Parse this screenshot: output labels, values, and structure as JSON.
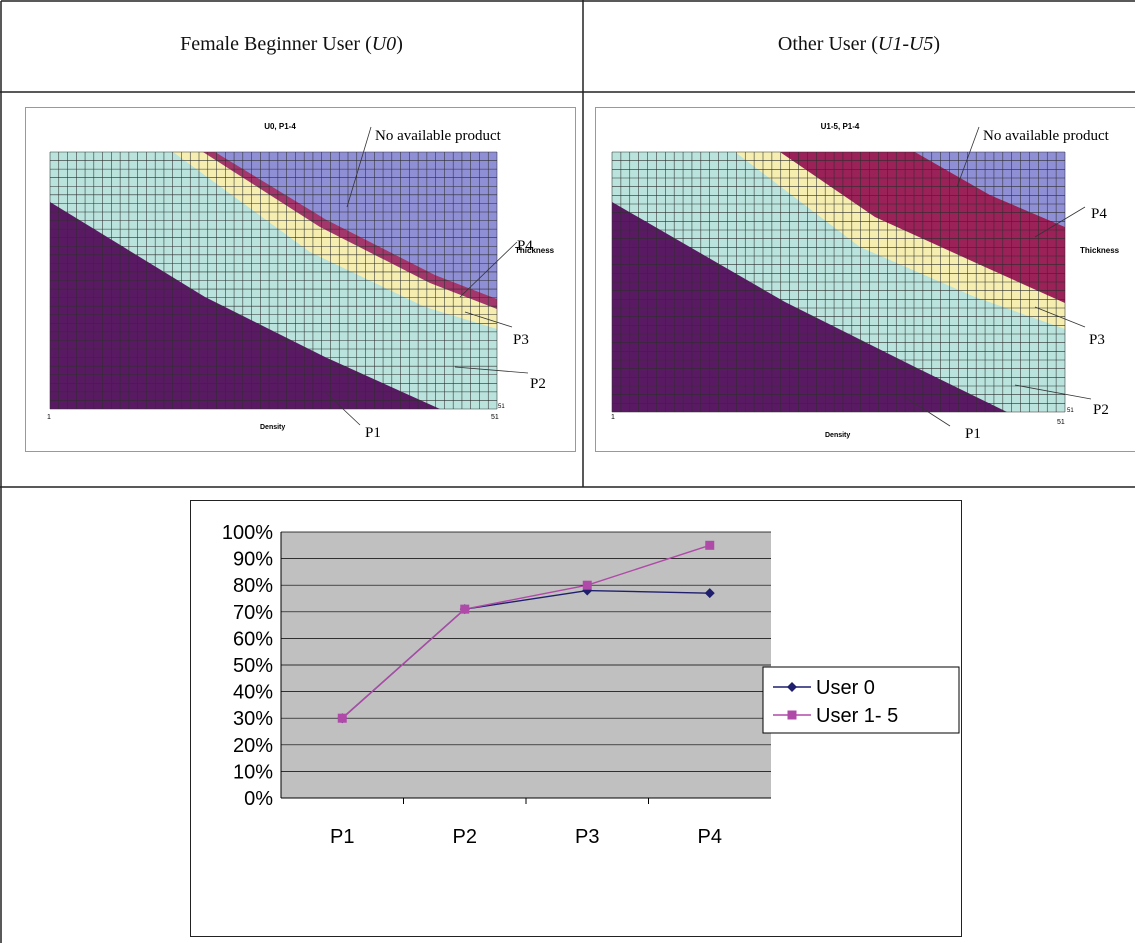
{
  "headers": {
    "left": {
      "prefix": "Female Beginner User (",
      "italic": "U0",
      "suffix": ")"
    },
    "right": {
      "prefix": "Other User (",
      "italic": "U1-U5",
      "suffix": ")"
    }
  },
  "maps": [
    {
      "title": "U0, P1-4",
      "no_product_label": "No available product",
      "y_axis_label": "Thickness",
      "x_axis_label": "Density",
      "x_min_tick": "1",
      "x_max_tick": "51",
      "y_tick": "51",
      "product_labels": [
        "P4",
        "P3",
        "P2",
        "P1"
      ],
      "colors": {
        "p1": "#5a1a63",
        "p2": "#b9e3dc",
        "p3": "#f5eeb0",
        "p4": "#a3366a",
        "none": "#8f8fd6",
        "grid": "#2e2e2e"
      }
    },
    {
      "title": "U1-5, P1-4",
      "no_product_label": "No available product",
      "y_axis_label": "Thickness",
      "x_axis_label": "Density",
      "x_min_tick": "1",
      "x_max_tick": "51",
      "y_tick": "51",
      "product_labels": [
        "P4",
        "P3",
        "P2",
        "P1"
      ],
      "colors": {
        "p1": "#5a1a63",
        "p2": "#b9e3dc",
        "p3": "#f5eeb0",
        "p4": "#9b2159",
        "none": "#8f8fd6",
        "grid": "#2e2e2e"
      }
    }
  ],
  "chart_data": {
    "type": "line",
    "categories": [
      "P1",
      "P2",
      "P3",
      "P4"
    ],
    "series": [
      {
        "name": "User 0",
        "values": [
          30,
          71,
          78,
          77
        ],
        "color": "#1f1f6e",
        "marker": "diamond"
      },
      {
        "name": "User 1-5",
        "values": [
          30,
          71,
          80,
          95
        ],
        "color": "#b04aa8",
        "marker": "square"
      }
    ],
    "y_ticks": [
      "0%",
      "10%",
      "20%",
      "30%",
      "40%",
      "50%",
      "60%",
      "70%",
      "80%",
      "90%",
      "100%"
    ],
    "ylim": [
      0,
      100
    ],
    "grid": true,
    "plot_background": "#c0c0c0",
    "legend_position": "right",
    "legend_labels": [
      "User  0",
      "User  1- 5"
    ]
  }
}
